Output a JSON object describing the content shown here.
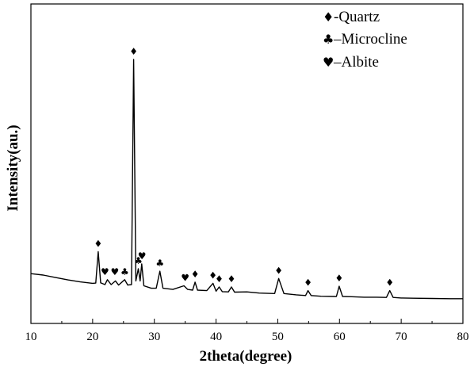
{
  "chart_data": {
    "type": "line",
    "xlabel": "2theta(degree)",
    "ylabel": "Intensity(au.)",
    "xlim": [
      10,
      80
    ],
    "xticks": [
      10,
      20,
      30,
      40,
      50,
      60,
      70,
      80
    ],
    "yticks_shown": false,
    "grid": false,
    "legend_position": "top-right",
    "legend": [
      {
        "symbol": "♦",
        "label": "-Quartz"
      },
      {
        "symbol": "♣",
        "label": "–Microcline"
      },
      {
        "symbol": "♥",
        "label": "–Albite"
      }
    ],
    "series": [
      {
        "x": [
          10,
          12,
          14,
          16,
          18,
          20,
          20.5,
          20.9,
          21.3,
          22,
          22.4,
          23,
          23.7,
          24.2,
          25.2,
          25.7,
          26.3,
          26.65,
          27.0,
          27.4,
          27.7,
          27.95,
          28.3,
          29.5,
          30.3,
          30.9,
          31.4,
          33,
          34.8,
          35.4,
          36.2,
          36.6,
          37.0,
          38.5,
          39.5,
          40.0,
          40.5,
          41.0,
          42.0,
          42.5,
          43.0,
          45,
          47,
          49.5,
          50.15,
          51.0,
          53,
          54.5,
          54.9,
          55.4,
          57,
          59.5,
          59.95,
          60.5,
          62,
          64,
          66,
          67.6,
          68.15,
          68.7,
          70,
          72,
          75,
          78,
          80
        ],
        "y": [
          12,
          11.4,
          10.4,
          9.4,
          8.6,
          8.0,
          8.1,
          21,
          8.2,
          7.5,
          9.5,
          7.5,
          9.0,
          7.3,
          9.5,
          7.3,
          7.5,
          100,
          9.0,
          14,
          9.0,
          16,
          7.0,
          6.0,
          6.0,
          13.0,
          6.0,
          5.5,
          7.0,
          5.5,
          5.2,
          8.5,
          5.2,
          5.0,
          8.0,
          4.8,
          6.5,
          4.6,
          4.5,
          6.5,
          4.4,
          4.5,
          4.0,
          3.8,
          10.0,
          3.8,
          3.3,
          3.0,
          5.0,
          3.0,
          2.7,
          2.6,
          6.8,
          2.6,
          2.5,
          2.3,
          2.3,
          2.2,
          5.0,
          2.2,
          2.0,
          1.9,
          1.8,
          1.7,
          1.7
        ]
      }
    ],
    "annotations": [
      {
        "x": 20.9,
        "y": 21,
        "symbol": "♦"
      },
      {
        "x": 22.0,
        "y": 9.5,
        "symbol": "♥"
      },
      {
        "x": 23.6,
        "y": 9.5,
        "symbol": "♥"
      },
      {
        "x": 25.2,
        "y": 9.5,
        "symbol": "♣"
      },
      {
        "x": 26.65,
        "y": 100,
        "symbol": "♦"
      },
      {
        "x": 27.4,
        "y": 14,
        "symbol": "♣"
      },
      {
        "x": 28.0,
        "y": 16,
        "symbol": "♥"
      },
      {
        "x": 30.9,
        "y": 13,
        "symbol": "♣"
      },
      {
        "x": 35.0,
        "y": 7.0,
        "symbol": "♥"
      },
      {
        "x": 36.6,
        "y": 8.5,
        "symbol": "♦"
      },
      {
        "x": 39.5,
        "y": 8.0,
        "symbol": "♦"
      },
      {
        "x": 40.5,
        "y": 6.5,
        "symbol": "♦"
      },
      {
        "x": 42.5,
        "y": 6.5,
        "symbol": "♦"
      },
      {
        "x": 50.15,
        "y": 10.0,
        "symbol": "♦"
      },
      {
        "x": 54.9,
        "y": 5.0,
        "symbol": "♦"
      },
      {
        "x": 59.95,
        "y": 6.8,
        "symbol": "♦"
      },
      {
        "x": 68.15,
        "y": 5.0,
        "symbol": "♦"
      }
    ]
  }
}
